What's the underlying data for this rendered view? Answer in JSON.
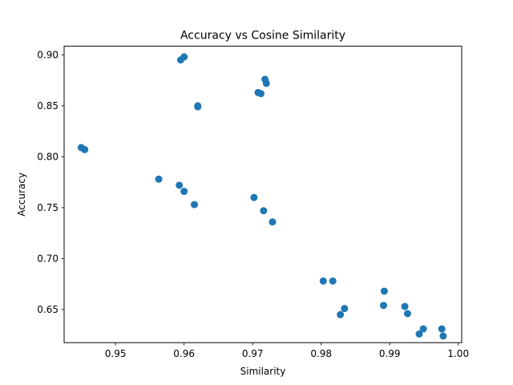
{
  "chart_data": {
    "type": "scatter",
    "title": "Accuracy vs Cosine Similarity",
    "xlabel": "Similarity",
    "ylabel": "Accuracy",
    "xlim": [
      0.9425,
      1.0005
    ],
    "ylim": [
      0.6175,
      0.9085
    ],
    "xticks": [
      0.95,
      0.96,
      0.97,
      0.98,
      0.99,
      1.0
    ],
    "xtick_labels": [
      "0.95",
      "0.96",
      "0.97",
      "0.98",
      "0.99",
      "1.00"
    ],
    "yticks": [
      0.65,
      0.7,
      0.75,
      0.8,
      0.85,
      0.9
    ],
    "ytick_labels": [
      "0.65",
      "0.70",
      "0.75",
      "0.80",
      "0.85",
      "0.90"
    ],
    "grid": false,
    "marker_color": "#1f77b4",
    "points": [
      {
        "x": 0.945,
        "y": 0.809
      },
      {
        "x": 0.9455,
        "y": 0.807
      },
      {
        "x": 0.9563,
        "y": 0.778
      },
      {
        "x": 0.9593,
        "y": 0.772
      },
      {
        "x": 0.9595,
        "y": 0.895
      },
      {
        "x": 0.96,
        "y": 0.898
      },
      {
        "x": 0.96,
        "y": 0.766
      },
      {
        "x": 0.9615,
        "y": 0.753
      },
      {
        "x": 0.962,
        "y": 0.85
      },
      {
        "x": 0.962,
        "y": 0.849
      },
      {
        "x": 0.9702,
        "y": 0.76
      },
      {
        "x": 0.9708,
        "y": 0.863
      },
      {
        "x": 0.9712,
        "y": 0.862
      },
      {
        "x": 0.9716,
        "y": 0.747
      },
      {
        "x": 0.9718,
        "y": 0.876
      },
      {
        "x": 0.972,
        "y": 0.872
      },
      {
        "x": 0.9729,
        "y": 0.736
      },
      {
        "x": 0.9803,
        "y": 0.678
      },
      {
        "x": 0.9817,
        "y": 0.678
      },
      {
        "x": 0.9828,
        "y": 0.645
      },
      {
        "x": 0.9834,
        "y": 0.651
      },
      {
        "x": 0.9891,
        "y": 0.654
      },
      {
        "x": 0.9892,
        "y": 0.668
      },
      {
        "x": 0.9922,
        "y": 0.653
      },
      {
        "x": 0.9926,
        "y": 0.646
      },
      {
        "x": 0.9943,
        "y": 0.626
      },
      {
        "x": 0.9949,
        "y": 0.631
      },
      {
        "x": 0.9976,
        "y": 0.631
      },
      {
        "x": 0.9978,
        "y": 0.624
      }
    ]
  }
}
